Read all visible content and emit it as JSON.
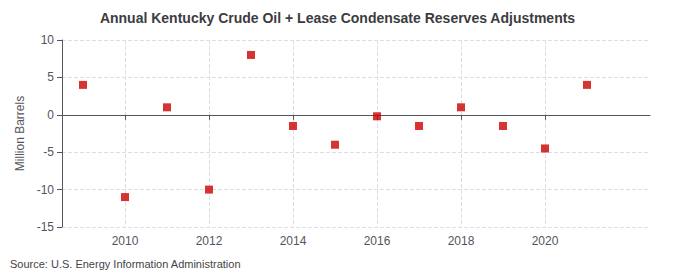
{
  "chart_data": {
    "type": "scatter",
    "title": "Annual Kentucky Crude Oil + Lease Condensate Reserves Adjustments",
    "ylabel": "Million Barrels",
    "annotation": "Source: U.S. Energy Information Administration",
    "x": [
      2009,
      2010,
      2011,
      2012,
      2013,
      2014,
      2015,
      2016,
      2017,
      2018,
      2019,
      2020,
      2021
    ],
    "values": [
      4.0,
      -11.0,
      1.0,
      -10.0,
      8.0,
      -1.5,
      -4.0,
      -0.2,
      -1.5,
      1.0,
      -1.5,
      -4.5,
      4.0
    ],
    "color": "#cc0000",
    "marker": "square",
    "xlim": [
      2008.5,
      2022.5
    ],
    "xticks": [
      2010,
      2012,
      2014,
      2016,
      2018,
      2020
    ],
    "ylim": [
      -15,
      10
    ],
    "yticks": [
      -15,
      -10,
      -5,
      0,
      5,
      10
    ],
    "grid": true
  }
}
